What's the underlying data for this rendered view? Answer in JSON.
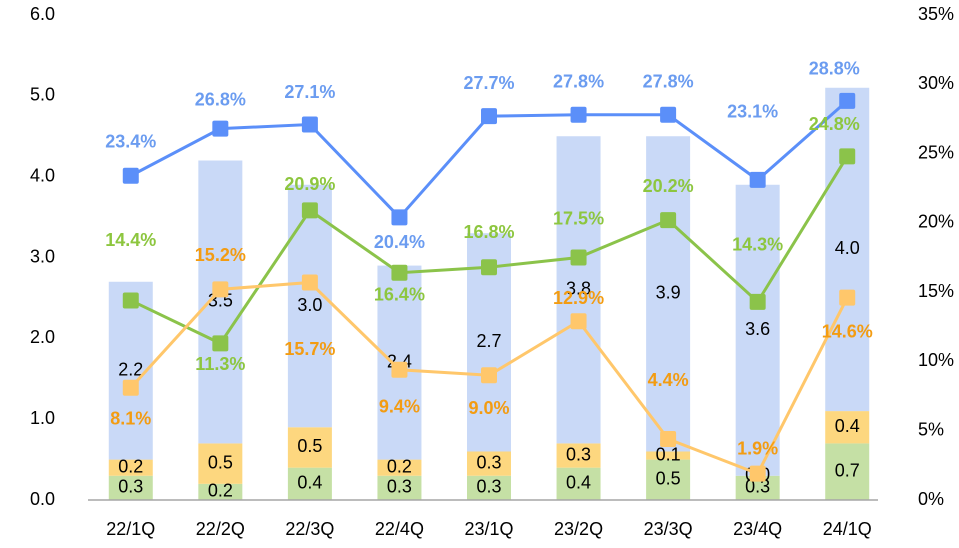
{
  "chart_data": {
    "type": "bar_line",
    "categories": [
      "22/1Q",
      "22/2Q",
      "22/3Q",
      "22/4Q",
      "23/1Q",
      "23/2Q",
      "23/3Q",
      "23/4Q",
      "24/1Q"
    ],
    "series": [
      {
        "type": "bar",
        "color": "#c5e0a5",
        "values": [
          0.3,
          0.2,
          0.4,
          0.3,
          0.3,
          0.4,
          0.5,
          0.3,
          0.7
        ],
        "value_labels": [
          "0.3",
          "0.2",
          "0.4",
          "0.3",
          "0.3",
          "0.4",
          "0.5",
          "0.3",
          "0.7"
        ]
      },
      {
        "type": "bar",
        "color": "#fdd77f",
        "values": [
          0.2,
          0.5,
          0.5,
          0.2,
          0.3,
          0.3,
          0.1,
          0.0,
          0.4
        ],
        "value_labels": [
          "0.2",
          "0.5",
          "0.5",
          "0.2",
          "0.3",
          "0.3",
          "0.1",
          "0.0",
          "0.4"
        ]
      },
      {
        "type": "bar",
        "color": "#c9d9f7",
        "values": [
          2.2,
          3.5,
          3.0,
          2.4,
          2.7,
          3.8,
          3.9,
          3.6,
          4.0
        ],
        "value_labels": [
          "2.2",
          "3.5",
          "3.0",
          "2.4",
          "2.7",
          "3.8",
          "3.9",
          "3.6",
          "4.0"
        ]
      },
      {
        "type": "line",
        "axis": "y2",
        "color": "#5b8ff9",
        "label_color": "#6b9cf0",
        "values": [
          23.4,
          26.8,
          27.1,
          20.4,
          27.7,
          27.8,
          27.8,
          23.1,
          28.8
        ],
        "value_labels": [
          "23.4%",
          "26.8%",
          "27.1%",
          "20.4%",
          "27.7%",
          "27.8%",
          "27.8%",
          "23.1%",
          "28.8%"
        ]
      },
      {
        "type": "line",
        "axis": "y2",
        "color": "#8bc34a",
        "label_color": "#8dc63f",
        "values": [
          14.4,
          11.3,
          20.9,
          16.4,
          16.8,
          17.5,
          20.2,
          14.3,
          24.8
        ],
        "value_labels": [
          "14.4%",
          "11.3%",
          "20.9%",
          "16.4%",
          "16.8%",
          "17.5%",
          "20.2%",
          "14.3%",
          "24.8%"
        ]
      },
      {
        "type": "line",
        "axis": "y2",
        "color": "#ffc76b",
        "label_color": "#f39c12",
        "values": [
          8.1,
          15.2,
          15.7,
          9.4,
          9.0,
          12.9,
          4.4,
          1.9,
          14.6
        ],
        "value_labels": [
          "8.1%",
          "15.2%",
          "15.7%",
          "9.4%",
          "9.0%",
          "12.9%",
          "4.4%",
          "1.9%",
          "14.6%"
        ]
      }
    ],
    "ylim": [
      0,
      6
    ],
    "yticks": [
      {
        "value": 0,
        "label": "0.0"
      },
      {
        "value": 1,
        "label": "1.0"
      },
      {
        "value": 2,
        "label": "2.0"
      },
      {
        "value": 3,
        "label": "3.0"
      },
      {
        "value": 4,
        "label": "4.0"
      },
      {
        "value": 5,
        "label": "5.0"
      },
      {
        "value": 6,
        "label": "6.0"
      }
    ],
    "y2lim": [
      0,
      35
    ],
    "y2ticks": [
      {
        "value": 0,
        "label": "0%"
      },
      {
        "value": 5,
        "label": "5%"
      },
      {
        "value": 10,
        "label": "10%"
      },
      {
        "value": 15,
        "label": "15%"
      },
      {
        "value": 20,
        "label": "20%"
      },
      {
        "value": 25,
        "label": "25%"
      },
      {
        "value": 30,
        "label": "30%"
      },
      {
        "value": 35,
        "label": "35%"
      }
    ]
  }
}
